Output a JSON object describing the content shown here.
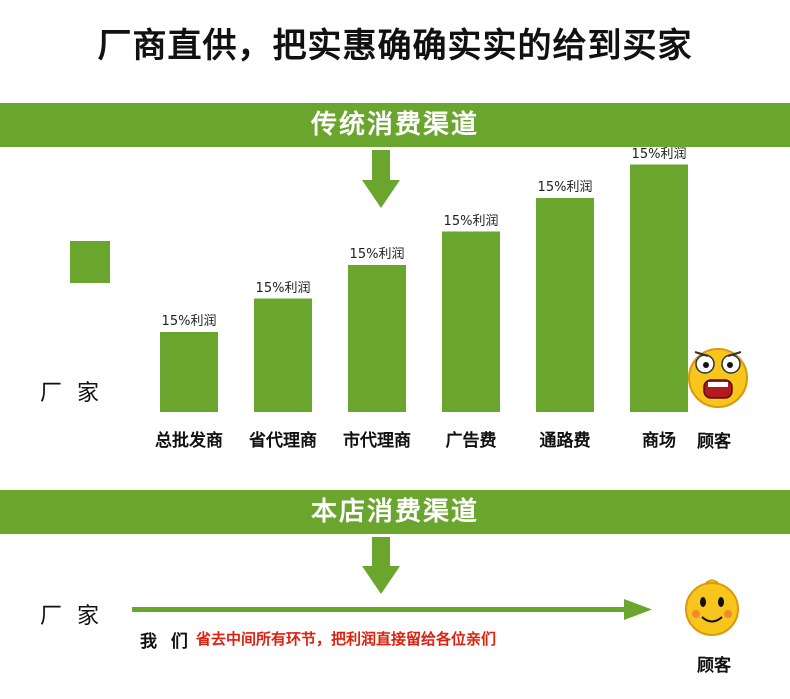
{
  "headline": "厂商直供，把实惠确确实实的给到买家",
  "traditional": {
    "banner": "传统消费渠道",
    "maker": "厂 家",
    "customer": "顾客"
  },
  "store": {
    "banner": "本店消费渠道",
    "maker": "厂 家",
    "we": "我 们",
    "slogan": "省去中间所有环节，把利润直接留给各位亲们",
    "customer": "顾客"
  },
  "colors": {
    "green": "#6aa52e",
    "red": "#e0200e"
  },
  "chart_data": {
    "type": "bar",
    "categories": [
      "总批发商",
      "省代理商",
      "市代理商",
      "广告费",
      "通路费",
      "商场"
    ],
    "values": [
      1,
      2,
      3,
      4,
      5,
      6
    ],
    "data_labels": [
      "15%利润",
      "15%利润",
      "15%利润",
      "15%利润",
      "15%利润",
      "15%利润"
    ],
    "title": "",
    "xlabel": "",
    "ylabel": "",
    "grid": false,
    "legend": "none"
  }
}
